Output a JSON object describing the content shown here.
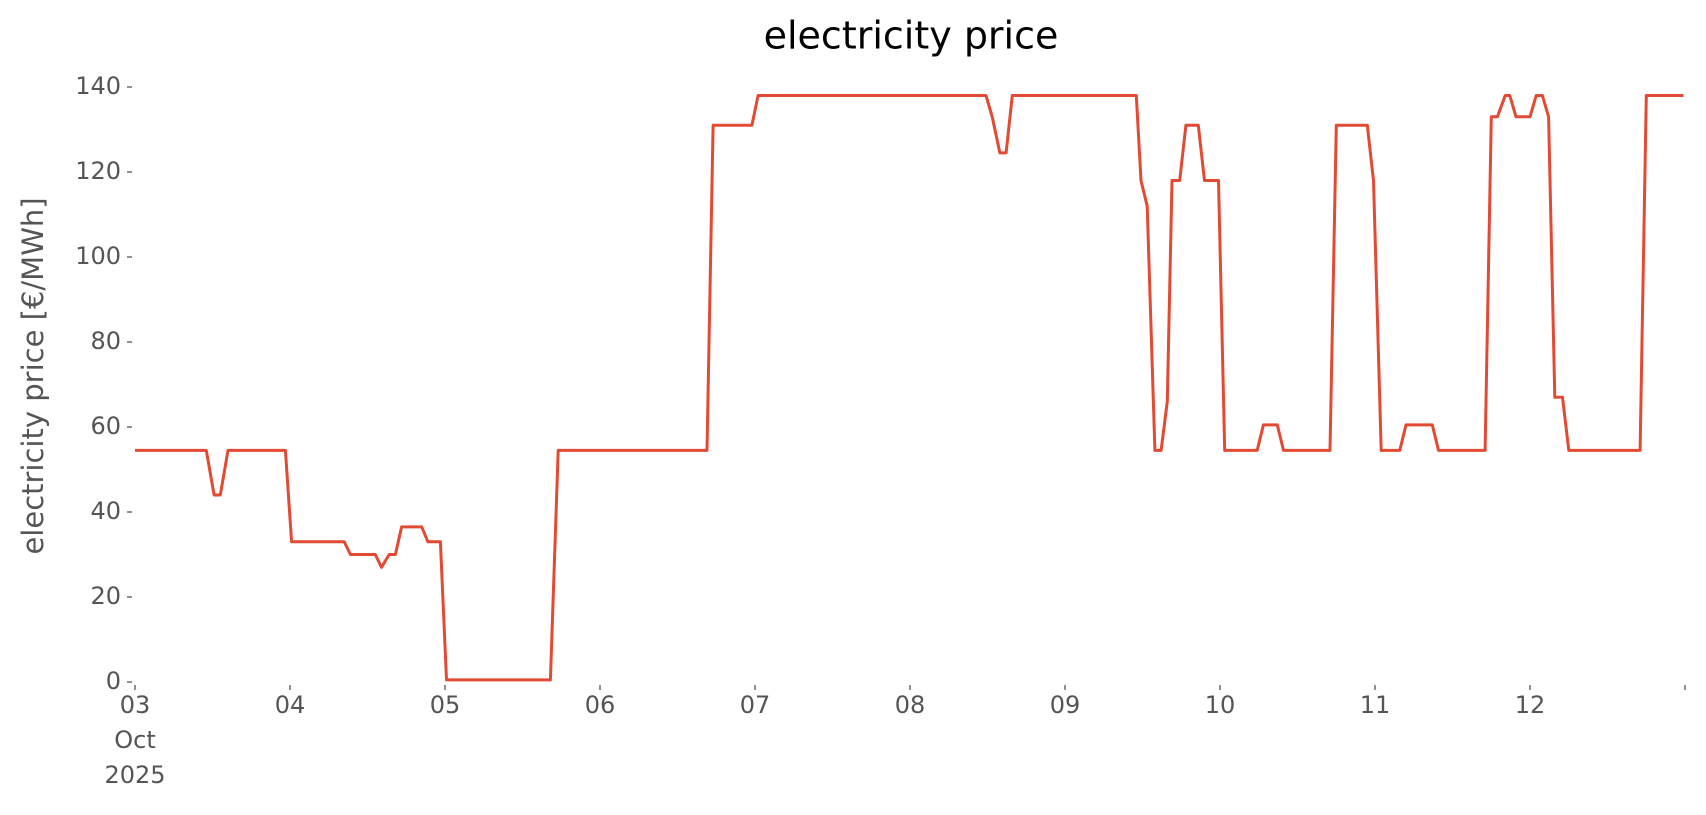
{
  "chart_data": {
    "type": "line",
    "title": "electricity price",
    "y_label": "electricity price [€/MWh]",
    "x": [
      0,
      0.46,
      0.51,
      0.55,
      0.6,
      0.97,
      1.01,
      1.35,
      1.39,
      1.55,
      1.59,
      1.64,
      1.68,
      1.72,
      1.85,
      1.89,
      1.97,
      2.01,
      2.68,
      2.73,
      3.69,
      3.73,
      3.98,
      4.02,
      5.49,
      5.53,
      5.58,
      5.62,
      5.66,
      6.46,
      6.49,
      6.53,
      6.58,
      6.62,
      6.66,
      6.69,
      6.74,
      6.78,
      6.86,
      6.9,
      6.99,
      7.03,
      7.24,
      7.28,
      7.37,
      7.41,
      7.71,
      7.75,
      7.95,
      7.99,
      8.04,
      8.16,
      8.2,
      8.37,
      8.41,
      8.71,
      8.75,
      8.79,
      8.84,
      8.87,
      8.91,
      9.0,
      9.04,
      9.08,
      9.12,
      9.16,
      9.21,
      9.25,
      9.71,
      9.75,
      9.99
    ],
    "series": [
      {
        "name": "electricity price",
        "color": "#e24a33",
        "values": [
          54.5,
          54.5,
          44,
          44,
          54.5,
          54.5,
          33,
          33,
          30,
          30,
          27,
          30,
          30,
          36.5,
          36.5,
          33,
          33,
          0.5,
          0.5,
          54.5,
          54.5,
          131,
          131,
          138,
          138,
          133,
          124.5,
          124.5,
          138,
          138,
          118,
          112,
          54.5,
          54.5,
          66,
          118,
          118,
          131,
          131,
          118,
          118,
          54.5,
          54.5,
          60.5,
          60.5,
          54.5,
          54.5,
          131,
          131,
          118,
          54.5,
          54.5,
          60.5,
          60.5,
          54.5,
          54.5,
          133,
          133,
          138,
          138,
          133,
          133,
          138,
          138,
          133,
          67,
          67,
          54.5,
          54.5,
          138,
          138
        ]
      }
    ],
    "xlim": [
      0,
      10
    ],
    "xticks": [
      {
        "value": 0,
        "label": "03\nOct\n2025"
      },
      {
        "value": 1,
        "label": "04"
      },
      {
        "value": 2,
        "label": "05"
      },
      {
        "value": 3,
        "label": "06"
      },
      {
        "value": 4,
        "label": "07"
      },
      {
        "value": 5,
        "label": "08"
      },
      {
        "value": 6,
        "label": "09"
      },
      {
        "value": 7,
        "label": "10"
      },
      {
        "value": 8,
        "label": "11"
      },
      {
        "value": 9,
        "label": "12"
      },
      {
        "value": 10,
        "label": null
      }
    ],
    "ylim": [
      0,
      140
    ],
    "yticks": [
      0,
      20,
      40,
      60,
      80,
      100,
      120,
      140
    ],
    "grid": false
  }
}
